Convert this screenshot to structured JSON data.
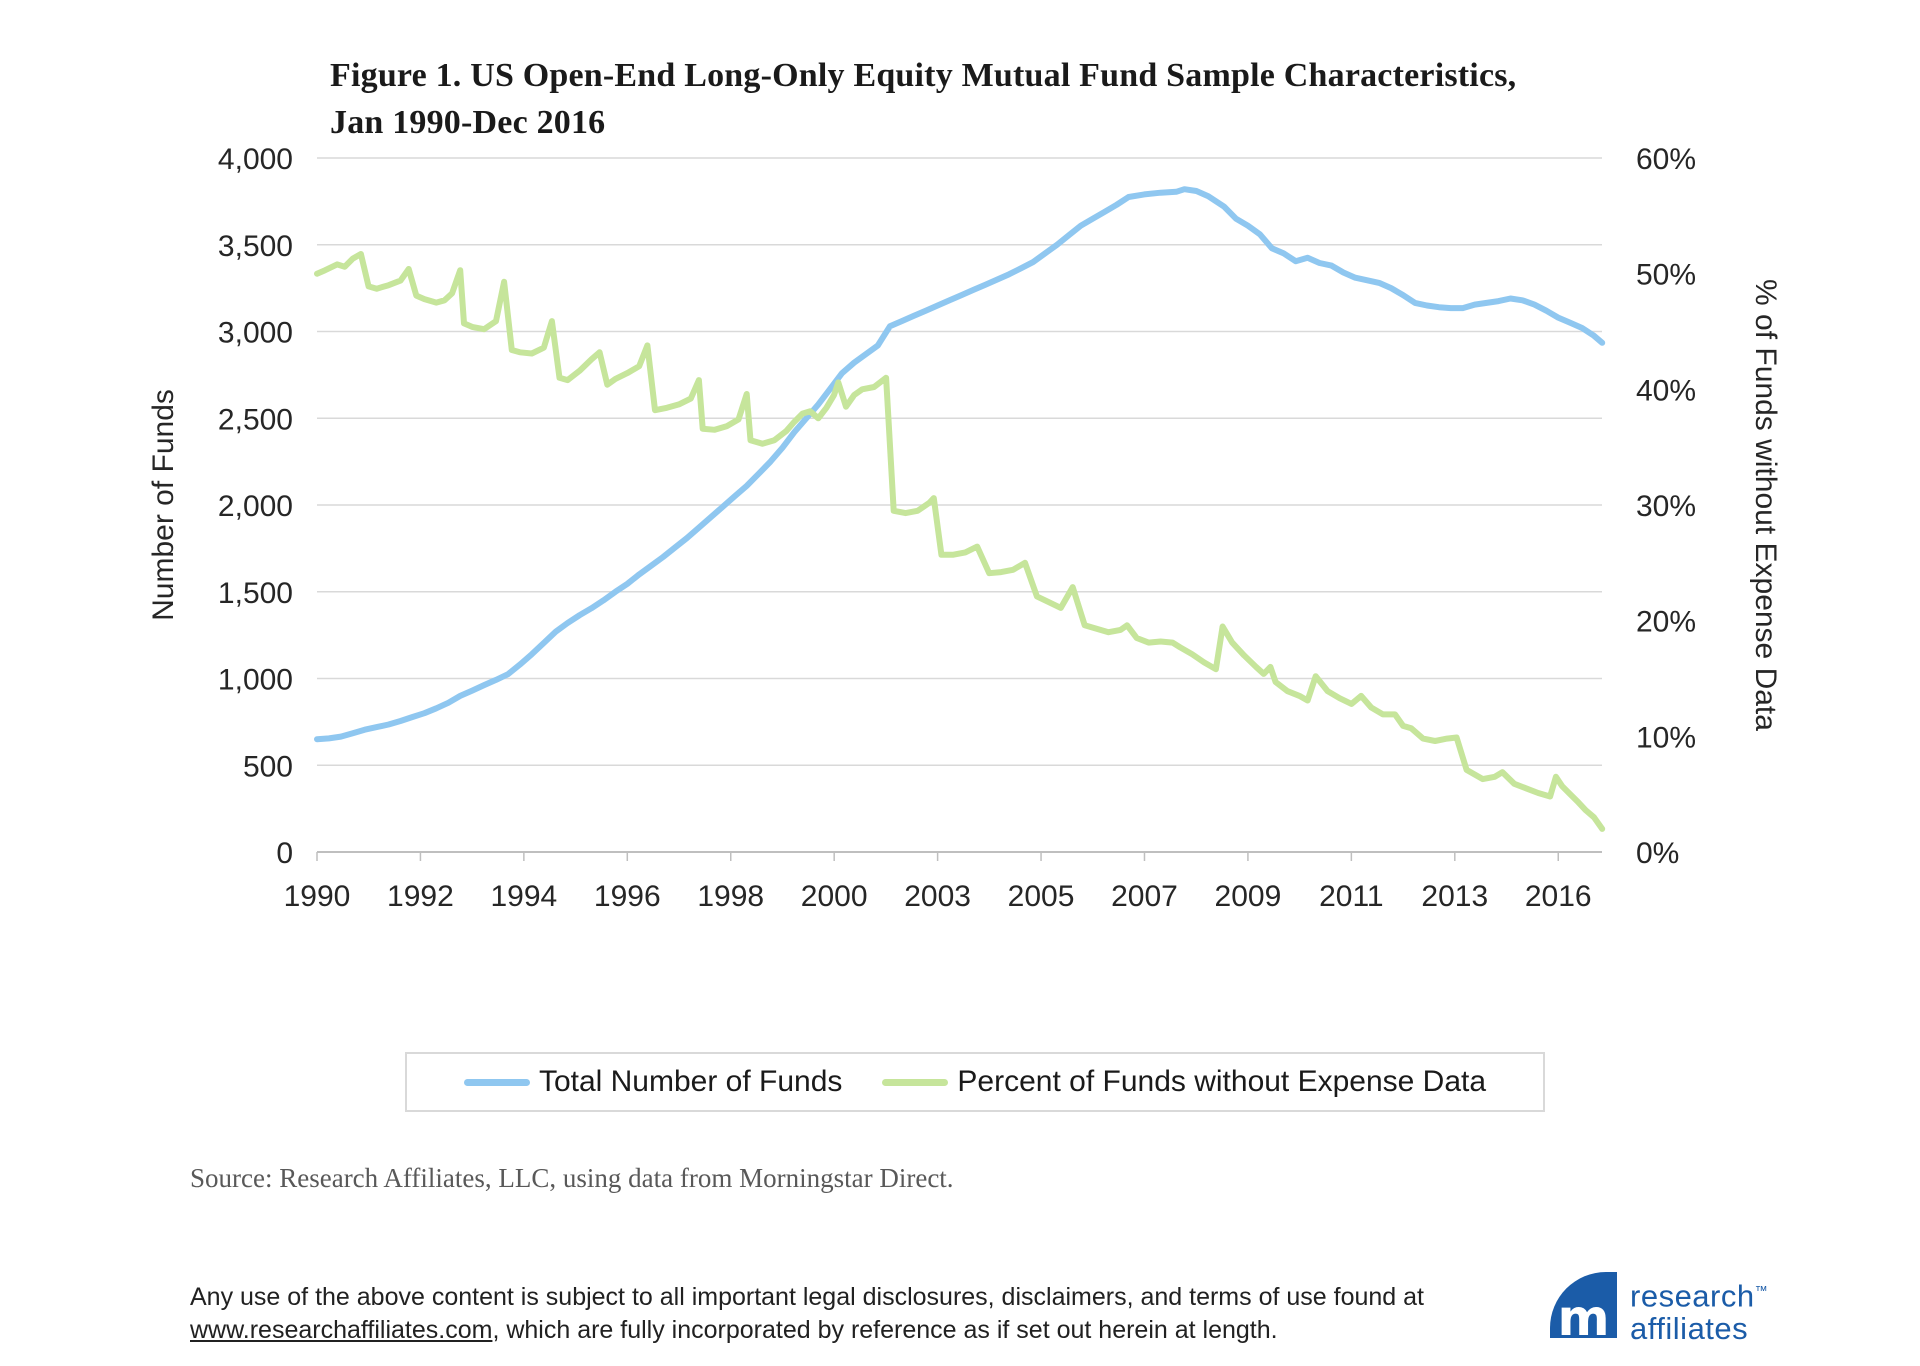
{
  "title": {
    "line1": "Figure 1. US Open-End Long-Only Equity Mutual Fund Sample Characteristics,",
    "line2": "Jan 1990-Dec 2016"
  },
  "colors": {
    "accent_blue": "#8FC7F0",
    "accent_green": "#C6E59B",
    "gridline": "#D9D9D9",
    "axis_line": "#BFBFBF",
    "tick_text": "#262626",
    "logo_blue": "#1B5CA8"
  },
  "chart_data": {
    "type": "line",
    "title": "Figure 1. US Open-End Long-Only Equity Mutual Fund Sample Characteristics, Jan 1990-Dec 2016",
    "grid": "horizontal",
    "legend_position": "bottom",
    "x_axis": {
      "range": [
        "Jan 1990",
        "Dec 2016"
      ],
      "tick_labels": [
        "1990",
        "1992",
        "1994",
        "1996",
        "1998",
        "2000",
        "2003",
        "2005",
        "2007",
        "2009",
        "2011",
        "2013",
        "2016"
      ],
      "tick_months_from_jan1990": [
        0,
        26,
        52,
        78,
        104,
        130,
        156,
        182,
        208,
        234,
        260,
        286,
        312
      ],
      "total_months": 323
    },
    "left_axis": {
      "label": "Number of Funds",
      "range": [
        0,
        4000
      ],
      "tick_step": 500,
      "tick_labels": [
        "4,000",
        "3,500",
        "3,000",
        "2,500",
        "2,000",
        "1,500",
        "1,000",
        "500",
        "0"
      ]
    },
    "right_axis": {
      "label": "% of Funds without Expense Data",
      "range": [
        0,
        60
      ],
      "tick_step": 10,
      "tick_labels": [
        "60%",
        "50%",
        "40%",
        "30%",
        "20%",
        "10%",
        "0%"
      ]
    },
    "series": [
      {
        "name": "Total Number of Funds",
        "axis": "left",
        "color": "#8FC7F0",
        "points": [
          [
            1990.0,
            650
          ],
          [
            1990.25,
            655
          ],
          [
            1990.5,
            665
          ],
          [
            1990.75,
            685
          ],
          [
            1991.0,
            705
          ],
          [
            1991.25,
            720
          ],
          [
            1991.5,
            735
          ],
          [
            1991.75,
            755
          ],
          [
            1992.0,
            778
          ],
          [
            1992.25,
            800
          ],
          [
            1992.5,
            828
          ],
          [
            1992.75,
            860
          ],
          [
            1993.0,
            900
          ],
          [
            1993.25,
            930
          ],
          [
            1993.5,
            962
          ],
          [
            1993.75,
            992
          ],
          [
            1994.0,
            1025
          ],
          [
            1994.25,
            1080
          ],
          [
            1994.5,
            1140
          ],
          [
            1994.75,
            1205
          ],
          [
            1995.0,
            1270
          ],
          [
            1995.25,
            1320
          ],
          [
            1995.5,
            1365
          ],
          [
            1995.75,
            1405
          ],
          [
            1996.0,
            1450
          ],
          [
            1996.25,
            1500
          ],
          [
            1996.5,
            1545
          ],
          [
            1996.75,
            1600
          ],
          [
            1997.0,
            1650
          ],
          [
            1997.25,
            1700
          ],
          [
            1997.5,
            1755
          ],
          [
            1997.75,
            1810
          ],
          [
            1998.0,
            1870
          ],
          [
            1998.25,
            1930
          ],
          [
            1998.5,
            1990
          ],
          [
            1998.75,
            2050
          ],
          [
            1999.0,
            2110
          ],
          [
            1999.25,
            2180
          ],
          [
            1999.5,
            2250
          ],
          [
            1999.75,
            2330
          ],
          [
            2000.0,
            2420
          ],
          [
            2000.25,
            2500
          ],
          [
            2000.5,
            2580
          ],
          [
            2000.75,
            2670
          ],
          [
            2001.0,
            2760
          ],
          [
            2001.25,
            2820
          ],
          [
            2001.5,
            2870
          ],
          [
            2001.75,
            2920
          ],
          [
            2002.0,
            3030
          ],
          [
            2002.25,
            3060
          ],
          [
            2002.5,
            3090
          ],
          [
            2002.75,
            3120
          ],
          [
            2003.0,
            3150
          ],
          [
            2003.25,
            3180
          ],
          [
            2003.5,
            3210
          ],
          [
            2003.75,
            3240
          ],
          [
            2004.0,
            3270
          ],
          [
            2004.25,
            3300
          ],
          [
            2004.5,
            3330
          ],
          [
            2004.75,
            3365
          ],
          [
            2005.0,
            3400
          ],
          [
            2005.25,
            3450
          ],
          [
            2005.5,
            3500
          ],
          [
            2005.75,
            3555
          ],
          [
            2006.0,
            3610
          ],
          [
            2006.25,
            3650
          ],
          [
            2006.5,
            3690
          ],
          [
            2006.75,
            3730
          ],
          [
            2007.0,
            3775
          ],
          [
            2007.33,
            3790
          ],
          [
            2007.67,
            3800
          ],
          [
            2008.0,
            3805
          ],
          [
            2008.17,
            3820
          ],
          [
            2008.42,
            3810
          ],
          [
            2008.67,
            3780
          ],
          [
            2009.0,
            3720
          ],
          [
            2009.25,
            3650
          ],
          [
            2009.5,
            3610
          ],
          [
            2009.75,
            3560
          ],
          [
            2010.0,
            3480
          ],
          [
            2010.25,
            3450
          ],
          [
            2010.5,
            3405
          ],
          [
            2010.75,
            3425
          ],
          [
            2011.0,
            3395
          ],
          [
            2011.25,
            3380
          ],
          [
            2011.5,
            3340
          ],
          [
            2011.75,
            3310
          ],
          [
            2012.0,
            3295
          ],
          [
            2012.25,
            3280
          ],
          [
            2012.5,
            3250
          ],
          [
            2012.75,
            3210
          ],
          [
            2013.0,
            3165
          ],
          [
            2013.25,
            3150
          ],
          [
            2013.5,
            3140
          ],
          [
            2013.75,
            3135
          ],
          [
            2014.0,
            3135
          ],
          [
            2014.25,
            3155
          ],
          [
            2014.5,
            3165
          ],
          [
            2014.75,
            3175
          ],
          [
            2015.0,
            3190
          ],
          [
            2015.25,
            3180
          ],
          [
            2015.5,
            3155
          ],
          [
            2015.75,
            3120
          ],
          [
            2016.0,
            3080
          ],
          [
            2016.25,
            3050
          ],
          [
            2016.5,
            3020
          ],
          [
            2016.75,
            2975
          ],
          [
            2016.92,
            2935
          ]
        ]
      },
      {
        "name": "Percent of Funds without Expense Data",
        "axis": "right",
        "color": "#C6E59B",
        "points": [
          [
            1990.0,
            50.0
          ],
          [
            1990.17,
            50.3
          ],
          [
            1990.42,
            50.8
          ],
          [
            1990.58,
            50.6
          ],
          [
            1990.75,
            51.3
          ],
          [
            1990.92,
            51.7
          ],
          [
            1991.08,
            48.9
          ],
          [
            1991.25,
            48.7
          ],
          [
            1991.5,
            49.0
          ],
          [
            1991.75,
            49.4
          ],
          [
            1991.92,
            50.4
          ],
          [
            1992.08,
            48.1
          ],
          [
            1992.25,
            47.8
          ],
          [
            1992.5,
            47.5
          ],
          [
            1992.67,
            47.7
          ],
          [
            1992.83,
            48.3
          ],
          [
            1993.0,
            50.3
          ],
          [
            1993.08,
            45.7
          ],
          [
            1993.25,
            45.4
          ],
          [
            1993.5,
            45.2
          ],
          [
            1993.75,
            45.9
          ],
          [
            1993.92,
            49.3
          ],
          [
            1994.08,
            43.4
          ],
          [
            1994.25,
            43.2
          ],
          [
            1994.5,
            43.1
          ],
          [
            1994.75,
            43.6
          ],
          [
            1994.92,
            45.9
          ],
          [
            1995.08,
            41.0
          ],
          [
            1995.25,
            40.8
          ],
          [
            1995.5,
            41.6
          ],
          [
            1995.75,
            42.6
          ],
          [
            1995.92,
            43.2
          ],
          [
            1996.08,
            40.4
          ],
          [
            1996.25,
            40.9
          ],
          [
            1996.5,
            41.4
          ],
          [
            1996.75,
            42.0
          ],
          [
            1996.92,
            43.8
          ],
          [
            1997.08,
            38.2
          ],
          [
            1997.33,
            38.4
          ],
          [
            1997.58,
            38.7
          ],
          [
            1997.83,
            39.2
          ],
          [
            1998.0,
            40.8
          ],
          [
            1998.08,
            36.6
          ],
          [
            1998.33,
            36.5
          ],
          [
            1998.58,
            36.8
          ],
          [
            1998.83,
            37.4
          ],
          [
            1999.0,
            39.6
          ],
          [
            1999.08,
            35.6
          ],
          [
            1999.33,
            35.3
          ],
          [
            1999.58,
            35.6
          ],
          [
            1999.83,
            36.4
          ],
          [
            2000.0,
            37.2
          ],
          [
            2000.17,
            37.9
          ],
          [
            2000.33,
            38.1
          ],
          [
            2000.5,
            37.5
          ],
          [
            2000.67,
            38.4
          ],
          [
            2000.83,
            39.5
          ],
          [
            2000.92,
            40.6
          ],
          [
            2001.08,
            38.5
          ],
          [
            2001.25,
            39.5
          ],
          [
            2001.42,
            40.0
          ],
          [
            2001.67,
            40.2
          ],
          [
            2001.92,
            41.0
          ],
          [
            2002.08,
            29.5
          ],
          [
            2002.33,
            29.3
          ],
          [
            2002.58,
            29.5
          ],
          [
            2002.83,
            30.2
          ],
          [
            2002.92,
            30.6
          ],
          [
            2003.08,
            25.7
          ],
          [
            2003.33,
            25.7
          ],
          [
            2003.58,
            25.9
          ],
          [
            2003.83,
            26.4
          ],
          [
            2004.08,
            24.1
          ],
          [
            2004.33,
            24.2
          ],
          [
            2004.58,
            24.4
          ],
          [
            2004.83,
            25.0
          ],
          [
            2005.08,
            22.1
          ],
          [
            2005.33,
            21.6
          ],
          [
            2005.58,
            21.1
          ],
          [
            2005.83,
            22.9
          ],
          [
            2006.08,
            19.6
          ],
          [
            2006.33,
            19.3
          ],
          [
            2006.58,
            19.0
          ],
          [
            2006.83,
            19.2
          ],
          [
            2006.97,
            19.6
          ],
          [
            2007.17,
            18.5
          ],
          [
            2007.42,
            18.1
          ],
          [
            2007.67,
            18.2
          ],
          [
            2007.92,
            18.1
          ],
          [
            2008.08,
            17.7
          ],
          [
            2008.33,
            17.1
          ],
          [
            2008.58,
            16.4
          ],
          [
            2008.83,
            15.8
          ],
          [
            2008.97,
            19.5
          ],
          [
            2009.17,
            18.1
          ],
          [
            2009.42,
            17.0
          ],
          [
            2009.67,
            16.0
          ],
          [
            2009.83,
            15.4
          ],
          [
            2009.97,
            16.0
          ],
          [
            2010.08,
            14.7
          ],
          [
            2010.33,
            13.9
          ],
          [
            2010.58,
            13.5
          ],
          [
            2010.75,
            13.1
          ],
          [
            2010.92,
            15.2
          ],
          [
            2011.17,
            13.9
          ],
          [
            2011.42,
            13.3
          ],
          [
            2011.67,
            12.8
          ],
          [
            2011.87,
            13.5
          ],
          [
            2012.08,
            12.5
          ],
          [
            2012.33,
            11.9
          ],
          [
            2012.58,
            11.9
          ],
          [
            2012.75,
            10.9
          ],
          [
            2012.92,
            10.7
          ],
          [
            2013.17,
            9.8
          ],
          [
            2013.42,
            9.6
          ],
          [
            2013.67,
            9.8
          ],
          [
            2013.87,
            9.9
          ],
          [
            2014.08,
            7.1
          ],
          [
            2014.25,
            6.7
          ],
          [
            2014.42,
            6.3
          ],
          [
            2014.67,
            6.5
          ],
          [
            2014.83,
            6.9
          ],
          [
            2015.08,
            5.9
          ],
          [
            2015.33,
            5.5
          ],
          [
            2015.58,
            5.1
          ],
          [
            2015.83,
            4.8
          ],
          [
            2015.95,
            6.5
          ],
          [
            2016.08,
            5.7
          ],
          [
            2016.25,
            5.0
          ],
          [
            2016.42,
            4.3
          ],
          [
            2016.58,
            3.6
          ],
          [
            2016.75,
            3.0
          ],
          [
            2016.92,
            2.0
          ]
        ]
      }
    ]
  },
  "legend": {
    "items": [
      {
        "label": "Total Number of Funds",
        "color": "#8FC7F0"
      },
      {
        "label": "Percent of Funds without Expense Data",
        "color": "#C6E59B"
      }
    ]
  },
  "source_text": "Source: Research Affiliates, LLC, using data from Morningstar Direct.",
  "footer": {
    "text_before_link": "Any use of the above content is subject to all important legal disclosures, disclaimers, and terms of use found at ",
    "link_text": "www.researchaffiliates.com",
    "text_after_link": ", which are fully incorporated by reference as if set out herein at length."
  },
  "logo": {
    "monogram": "m",
    "line1": "research",
    "trademark": "™",
    "line2": "affiliates"
  }
}
